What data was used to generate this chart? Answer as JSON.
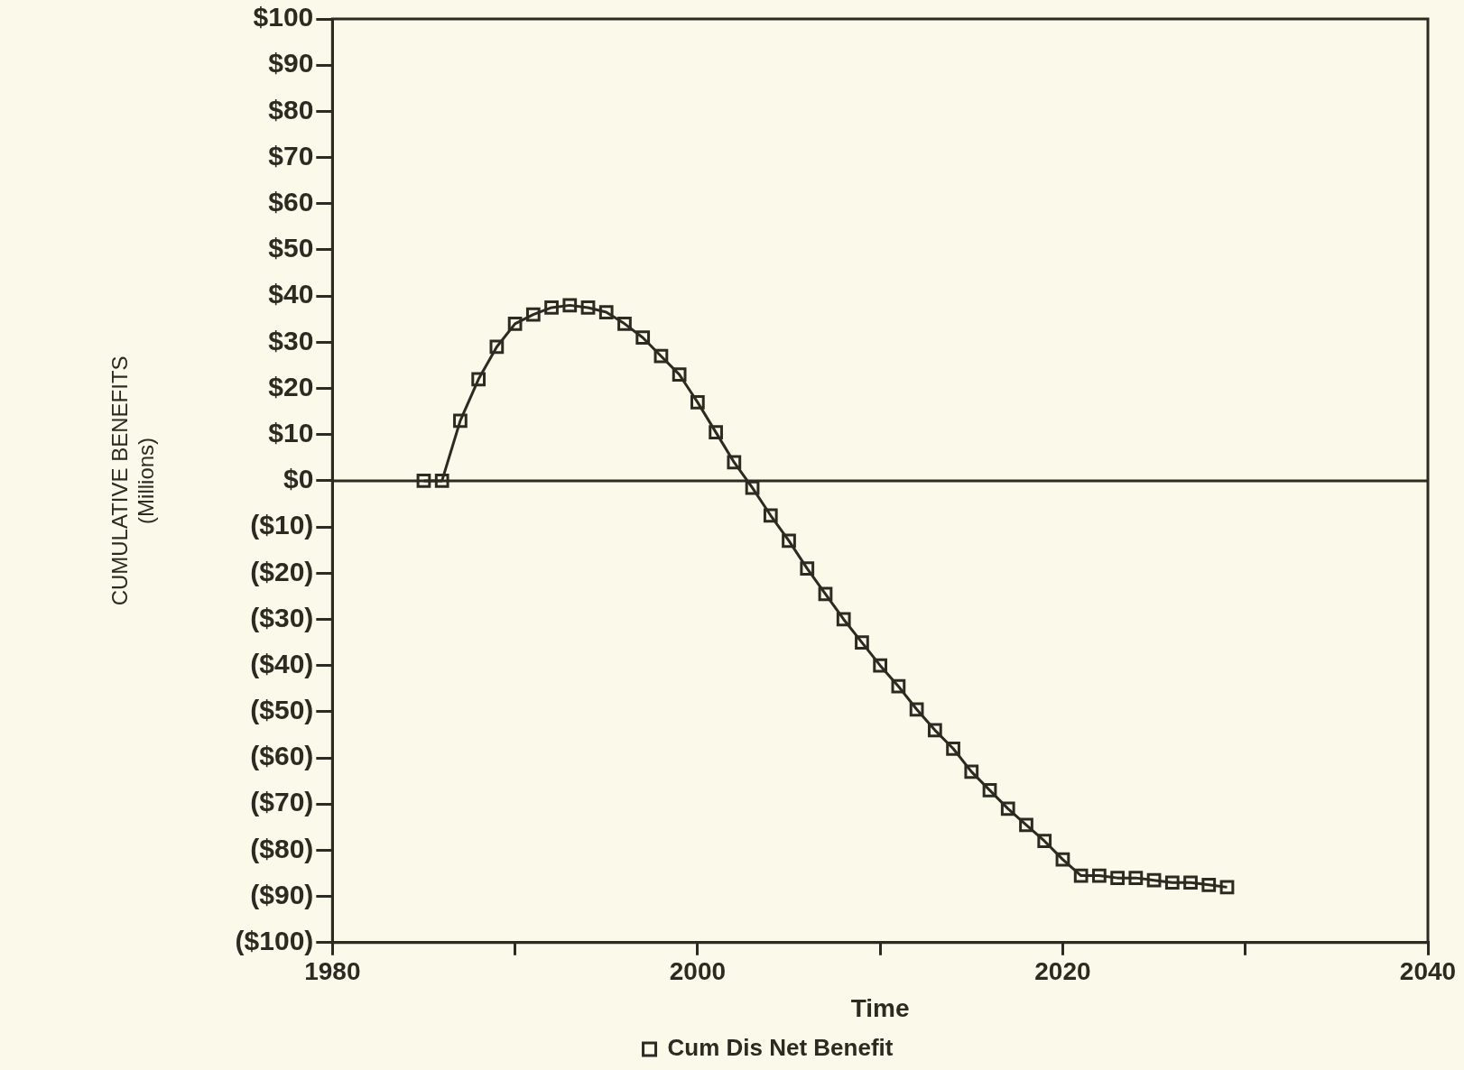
{
  "chart_data": {
    "type": "line",
    "xlabel": "Time",
    "ylabel": "CUMULATIVE BENEFITS\n(Millions)",
    "x": [
      1985,
      1986,
      1987,
      1988,
      1989,
      1990,
      1991,
      1992,
      1993,
      1994,
      1995,
      1996,
      1997,
      1998,
      1999,
      2000,
      2001,
      2002,
      2003,
      2004,
      2005,
      2006,
      2007,
      2008,
      2009,
      2010,
      2011,
      2012,
      2013,
      2014,
      2015,
      2016,
      2017,
      2018,
      2019,
      2020,
      2021,
      2022,
      2023,
      2024,
      2025,
      2026,
      2027,
      2028,
      2029
    ],
    "series": [
      {
        "name": "Cum Dis Net Benefit",
        "color": "#2b2b22",
        "values": [
          0,
          0,
          13,
          22,
          29,
          34,
          36,
          37.5,
          38,
          37.5,
          36.5,
          34,
          31,
          27,
          23,
          17,
          10.5,
          4,
          -1.5,
          -7.5,
          -13,
          -19,
          -24.5,
          -30,
          -35,
          -40,
          -44.5,
          -49.5,
          -54,
          -58,
          -63,
          -67,
          -71,
          -74.5,
          -78,
          -82,
          -85.5,
          -85.5,
          -86,
          -86,
          -86.5,
          -87,
          -87,
          -87.5,
          -88
        ]
      }
    ],
    "xlim": [
      1980,
      2040
    ],
    "xticks": [
      1980,
      {
        "value": 1990,
        "label": null
      },
      2000,
      {
        "value": 2010,
        "label": null
      },
      2020,
      {
        "value": 2030,
        "label": null
      },
      2040
    ],
    "ylim": [
      -100,
      100
    ],
    "yticks": [
      {
        "value": -100,
        "label": "($100)"
      },
      {
        "value": -90,
        "label": "($90)"
      },
      {
        "value": -80,
        "label": "($80)"
      },
      {
        "value": -70,
        "label": "($70)"
      },
      {
        "value": -60,
        "label": "($60)"
      },
      {
        "value": -50,
        "label": "($50)"
      },
      {
        "value": -40,
        "label": "($40)"
      },
      {
        "value": -30,
        "label": "($30)"
      },
      {
        "value": -20,
        "label": "($20)"
      },
      {
        "value": -10,
        "label": "($10)"
      },
      {
        "value": 0,
        "label": "$0"
      },
      {
        "value": 10,
        "label": "$10"
      },
      {
        "value": 20,
        "label": "$20"
      },
      {
        "value": 30,
        "label": "$30"
      },
      {
        "value": 40,
        "label": "$40"
      },
      {
        "value": 50,
        "label": "$50"
      },
      {
        "value": 60,
        "label": "$60"
      },
      {
        "value": 70,
        "label": "$70"
      },
      {
        "value": 80,
        "label": "$80"
      },
      {
        "value": 90,
        "label": "$90"
      },
      {
        "value": 100,
        "label": "$100"
      }
    ],
    "ref_lines": [
      {
        "axis": "y",
        "value": 0,
        "color": "#2b2b22"
      }
    ],
    "grid": false,
    "legend": "bottom",
    "marker": "square",
    "line_style": "solid"
  }
}
